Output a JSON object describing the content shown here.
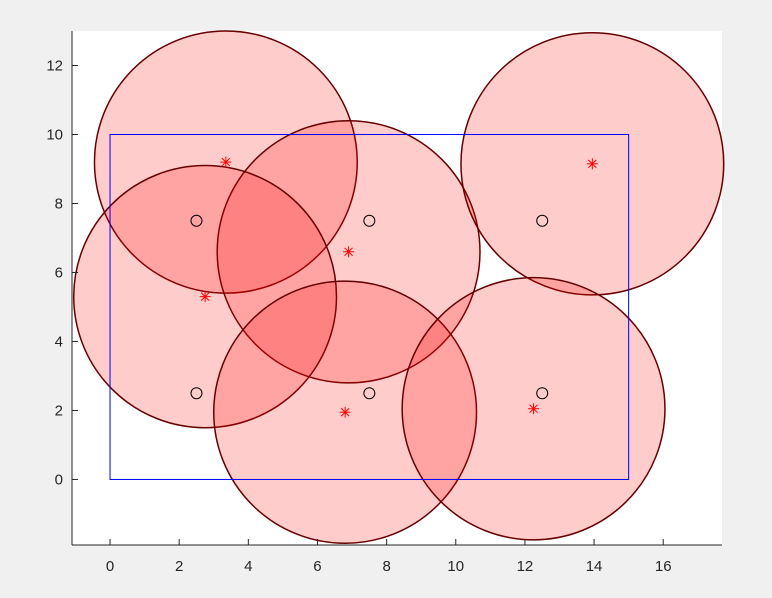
{
  "chart_data": {
    "type": "scatter",
    "title": "",
    "xlabel": "",
    "ylabel": "",
    "xlim": [
      -1.1,
      17.7
    ],
    "ylim": [
      -1.9,
      13.0
    ],
    "grid": false,
    "x_ticks": [
      0,
      2,
      4,
      6,
      8,
      10,
      12,
      14,
      16
    ],
    "y_ticks": [
      0,
      2,
      4,
      6,
      8,
      10,
      12
    ],
    "boundary_rectangle": {
      "x": [
        0,
        15
      ],
      "y": [
        0,
        10
      ],
      "color": "#0000ff"
    },
    "circle_markers": {
      "marker": "o",
      "color": "#000000",
      "x": [
        2.5,
        7.5,
        12.5,
        2.5,
        7.5,
        12.5
      ],
      "y": [
        2.5,
        2.5,
        2.5,
        7.5,
        7.5,
        7.5
      ]
    },
    "star_markers": {
      "marker": "*",
      "color": "#ff0000",
      "x": [
        3.35,
        6.9,
        13.95,
        2.75,
        6.8,
        12.25
      ],
      "y": [
        9.2,
        6.6,
        9.15,
        5.3,
        1.95,
        2.05
      ]
    },
    "coverage_circles": {
      "fill_color": "#ff0000",
      "fill_opacity": 0.2,
      "edge_color": "#660000",
      "radius": 3.8,
      "centers_x": [
        3.35,
        6.9,
        13.95,
        2.75,
        6.8,
        12.25
      ],
      "centers_y": [
        9.2,
        6.6,
        9.15,
        5.3,
        1.95,
        2.05
      ]
    }
  }
}
